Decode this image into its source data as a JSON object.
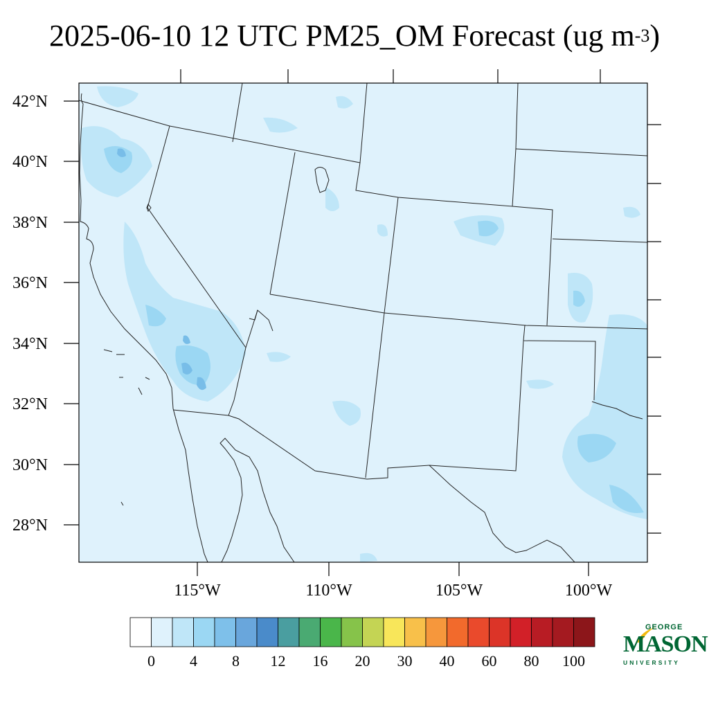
{
  "title": {
    "main": "2025-06-10 12 UTC PM25_OM Forecast (ug m",
    "superscript": "-3",
    "close": ")"
  },
  "map": {
    "lat_labels": [
      "42°N",
      "40°N",
      "38°N",
      "36°N",
      "34°N",
      "32°N",
      "30°N",
      "28°N"
    ],
    "lon_labels": [
      "115°W",
      "110°W",
      "105°W",
      "100°W"
    ],
    "background_color": "#dff2fc",
    "low_concentration_color": "#bfe6f8",
    "mid_concentration_color": "#9bd7f3",
    "high_concentration_color": "#78bde8"
  },
  "colorbar": {
    "labels": [
      "0",
      "4",
      "8",
      "12",
      "16",
      "20",
      "30",
      "40",
      "60",
      "80",
      "100"
    ],
    "colors": [
      "#ffffff",
      "#dff2fc",
      "#bfe6f8",
      "#9bd7f3",
      "#7ec0ea",
      "#69a6dc",
      "#4a8bca",
      "#4a9ea0",
      "#4aaa72",
      "#4ab64a",
      "#86c34a",
      "#c4d454",
      "#f8e65a",
      "#f8c04a",
      "#f6973c",
      "#f26a2c",
      "#ea4a2c",
      "#dc3428",
      "#d22028",
      "#b81c24",
      "#a41a20",
      "#8c161a"
    ]
  },
  "logo": {
    "line1": "GEORGE",
    "line2": "MASON",
    "line3": "UNIVERSITY",
    "color": "#006633",
    "accent": "#f2b90f"
  }
}
